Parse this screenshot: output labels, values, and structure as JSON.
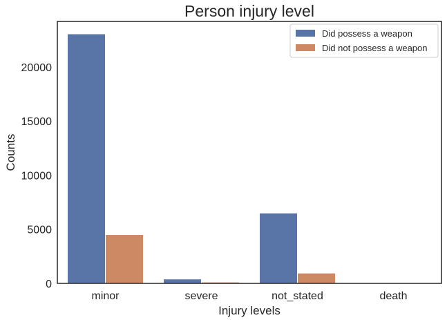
{
  "colors": {
    "did_possess": "#5975a7",
    "did_not_possess": "#cd8963",
    "frame": "#262626",
    "background": "#ffffff"
  },
  "chart_data": {
    "type": "bar",
    "title": "Person injury level",
    "xlabel": "Injury levels",
    "ylabel": "Counts",
    "categories": [
      "minor",
      "severe",
      "not_stated",
      "death"
    ],
    "series": [
      {
        "name": "Did possess a weapon",
        "values": [
          23050,
          400,
          6500,
          10
        ]
      },
      {
        "name": "Did not possess a weapon",
        "values": [
          4500,
          120,
          950,
          5
        ]
      }
    ],
    "ylim": [
      0,
      24200
    ],
    "yticks": [
      0,
      5000,
      10000,
      15000,
      20000
    ],
    "grid": false,
    "legend_position": "top-right"
  }
}
